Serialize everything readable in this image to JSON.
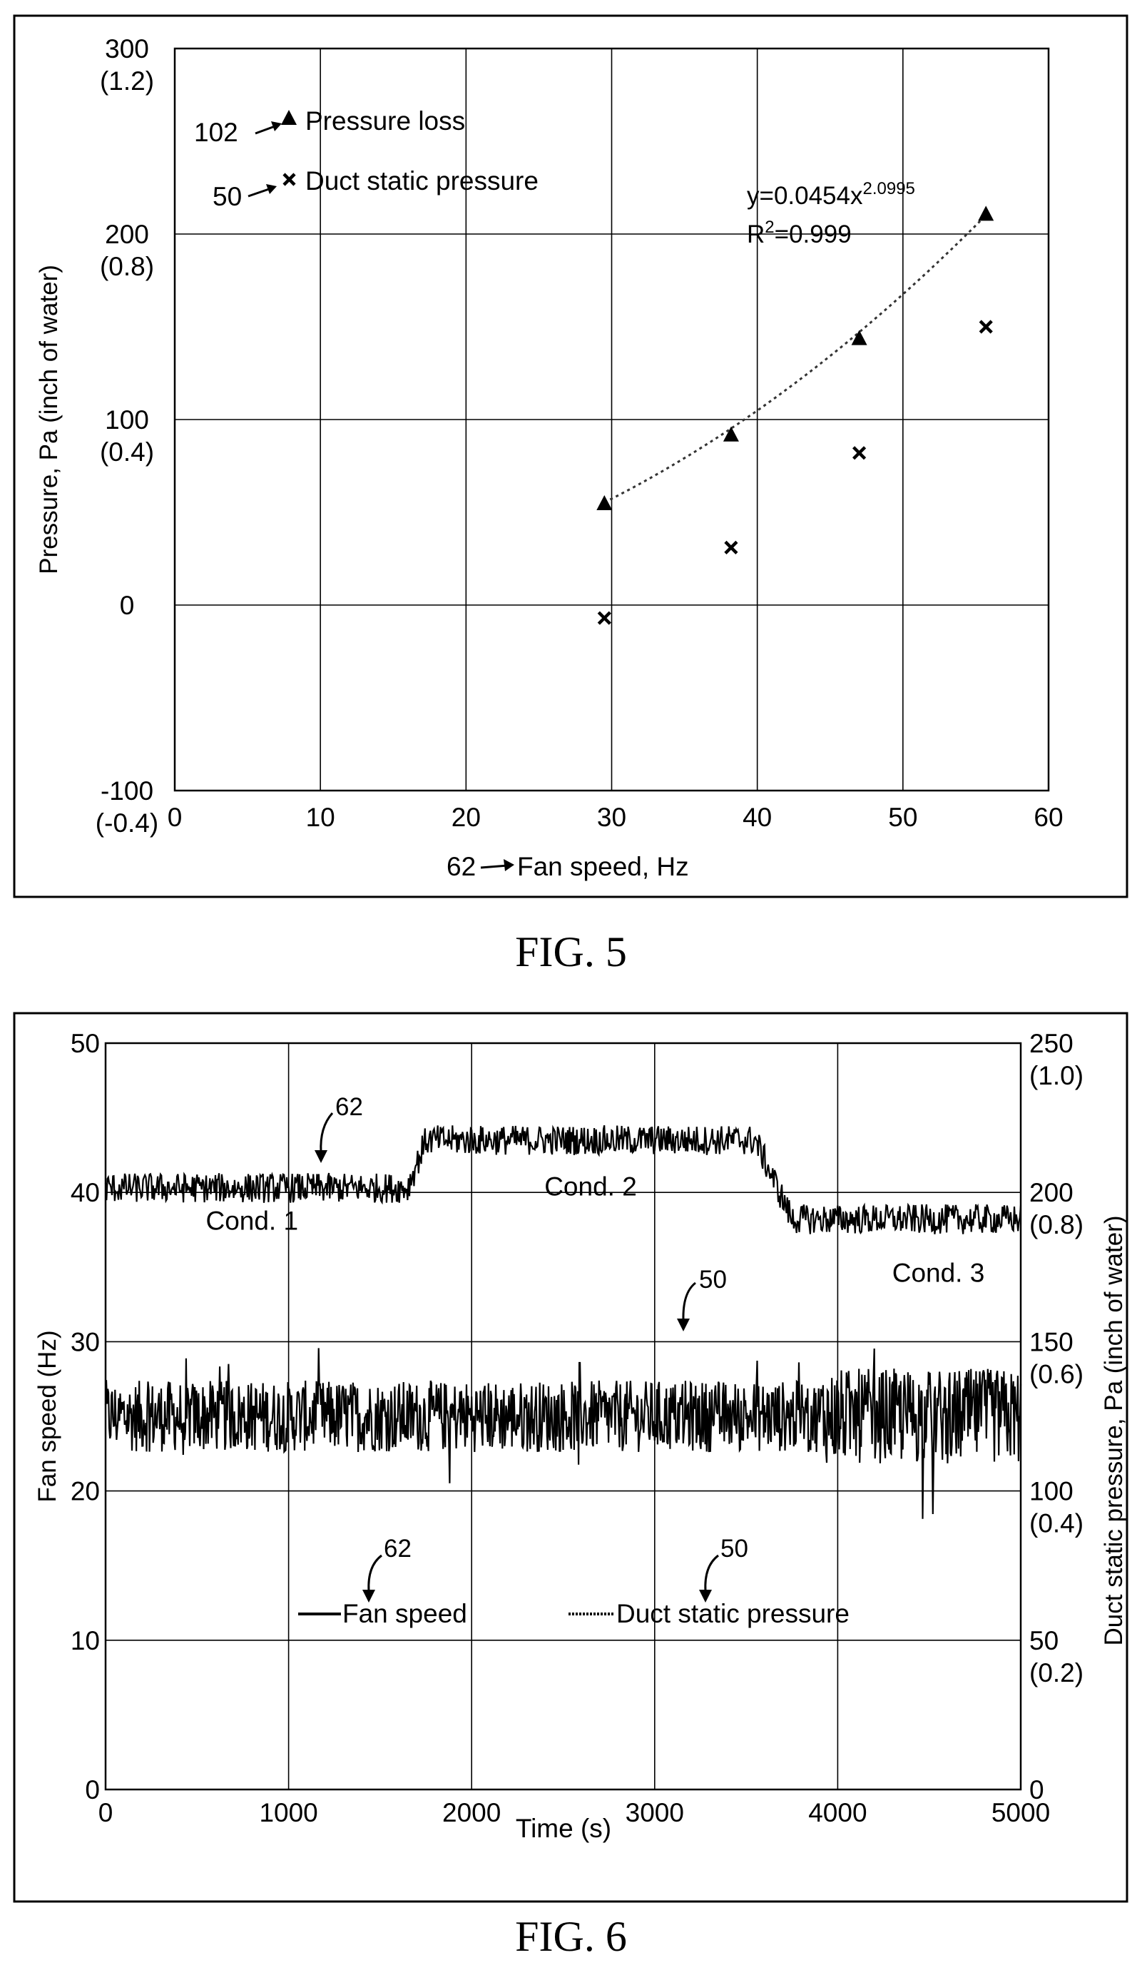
{
  "fig5": {
    "caption": "FIG. 5",
    "chart_data": {
      "type": "scatter",
      "ylabel": "Pressure, Pa (inch of water)",
      "xlabel": "Fan speed, Hz",
      "xlabel_ref": "62",
      "xlim": [
        0,
        60
      ],
      "ylim": [
        -100,
        300
      ],
      "x_ticks": [
        "0",
        "10",
        "20",
        "30",
        "40",
        "50",
        "60"
      ],
      "y_ticks": [
        {
          "value": 300,
          "label": "300",
          "sub": "(1.2)"
        },
        {
          "value": 200,
          "label": "200",
          "sub": "(0.8)"
        },
        {
          "value": 100,
          "label": "100",
          "sub": "(0.4)"
        },
        {
          "value": 0,
          "label": "0",
          "sub": ""
        },
        {
          "value": -100,
          "label": "-100",
          "sub": "(-0.4)"
        }
      ],
      "grid": true,
      "legend_position": "top-left",
      "series": [
        {
          "name": "Pressure loss",
          "ref": "102",
          "marker": "triangle",
          "x": [
            29.5,
            38.2,
            47.0,
            55.7
          ],
          "y": [
            55,
            92,
            144,
            211
          ]
        },
        {
          "name": "Duct static pressure",
          "ref": "50",
          "marker": "x",
          "x": [
            29.5,
            38.2,
            47.0,
            55.7
          ],
          "y": [
            -7,
            31,
            82,
            150
          ]
        }
      ],
      "trendline": {
        "type": "power",
        "a": 0.0454,
        "b": 2.0995,
        "x_range": [
          29.5,
          55.7
        ],
        "equation_text": "y=0.0454x",
        "equation_exp": "2.0995",
        "r2_text": "R",
        "r2_sup": "2",
        "r2_value": "=0.999"
      }
    }
  },
  "fig6": {
    "caption": "FIG. 6",
    "chart_data": {
      "type": "line",
      "xlabel": "Time (s)",
      "ylabel_left": "Fan speed (Hz)",
      "ylabel_right": "Duct static pressure, Pa (inch of water)",
      "xlim": [
        0,
        5000
      ],
      "ylim_left": [
        0,
        50
      ],
      "ylim_right": [
        0,
        250
      ],
      "x_ticks": [
        "0",
        "1000",
        "2000",
        "3000",
        "4000",
        "5000"
      ],
      "y_ticks_left": [
        "0",
        "10",
        "20",
        "30",
        "40",
        "50"
      ],
      "y_ticks_right": [
        {
          "value": 250,
          "label": "250",
          "sub": "(1.0)"
        },
        {
          "value": 200,
          "label": "200",
          "sub": "(0.8)"
        },
        {
          "value": 150,
          "label": "150",
          "sub": "(0.6)"
        },
        {
          "value": 100,
          "label": "100",
          "sub": "(0.4)"
        },
        {
          "value": 50,
          "label": "50",
          "sub": "(0.2)"
        },
        {
          "value": 0,
          "label": "0",
          "sub": ""
        }
      ],
      "grid": true,
      "legend_position": "bottom-center",
      "series": [
        {
          "name": "Fan speed",
          "ref": "62",
          "axis": "left",
          "segments": [
            {
              "t_start": 0,
              "t_end": 1650,
              "mean": 40.3,
              "noise": 1.0
            },
            {
              "t_start": 1750,
              "t_end": 3550,
              "mean": 43.5,
              "noise": 1.0
            },
            {
              "t_start": 3750,
              "t_end": 5000,
              "mean": 38.2,
              "noise": 1.0
            }
          ]
        },
        {
          "name": "Duct static pressure",
          "ref": "50",
          "axis": "right",
          "mean": 125,
          "noise": 12,
          "noise_late": 16
        }
      ],
      "annotations": [
        {
          "text": "Cond. 1",
          "x": 800,
          "y": 37.5
        },
        {
          "text": "Cond. 2",
          "x": 2650,
          "y": 39.8
        },
        {
          "text": "Cond. 3",
          "x": 4550,
          "y": 34.0
        }
      ],
      "refs": {
        "fan_speed": "62",
        "duct_pressure": "50"
      }
    }
  }
}
